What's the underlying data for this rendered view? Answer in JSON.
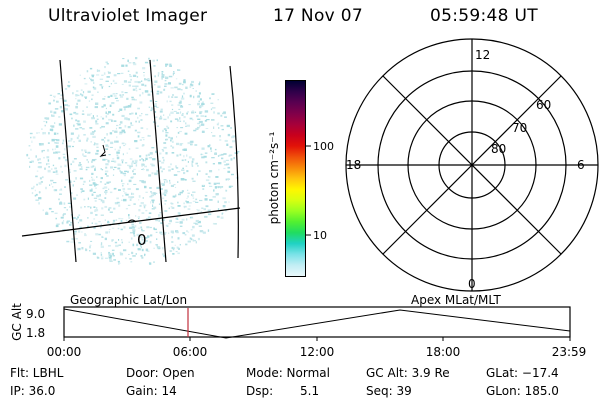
{
  "header": {
    "instrument": "Ultraviolet Imager",
    "date": "17 Nov 07",
    "time": "05:59:48 UT"
  },
  "colorbar": {
    "unit_label": "photon cm⁻²s⁻¹",
    "ticks": [
      "100",
      "10"
    ],
    "colors": [
      "#000033",
      "#30004a",
      "#5a0050",
      "#80004a",
      "#a6003a",
      "#c8001c",
      "#e21208",
      "#f0500a",
      "#f88a0a",
      "#ffc40e",
      "#fff600",
      "#d8ff10",
      "#9aff20",
      "#52f030",
      "#20dc60",
      "#20d2c4",
      "#7ae2e8",
      "#c2eef4",
      "#eaf8fb"
    ]
  },
  "geo_map": {
    "label": "Geographic Lat/Lon",
    "marker_label": "0"
  },
  "polar_plot": {
    "label": "Apex MLat/MLT",
    "mlt_labels": {
      "top": "12",
      "left": "18",
      "right": "6",
      "bottom": "0"
    },
    "lat_labels": [
      "60",
      "70",
      "80"
    ]
  },
  "orbit_plot": {
    "axis_title": "GC Alt",
    "y_ticks": [
      "9.0",
      "1.8"
    ],
    "x_ticks": [
      "00:00",
      "06:00",
      "12:00",
      "18:00",
      "23:59"
    ],
    "current_time_marker_color": "#c0303c"
  },
  "status": {
    "filter": "Flt: LBHL",
    "ip": "IP: 36.0",
    "door": "Door: Open",
    "gain": "Gain: 14",
    "mode": "Mode: Normal",
    "dsp_label": "Dsp:",
    "dsp_value": "5.1",
    "gc_alt": "GC Alt: 3.9 Re",
    "seq": "Seq: 39",
    "glat": "GLat: −17.4",
    "glon": "GLon: 185.0"
  }
}
